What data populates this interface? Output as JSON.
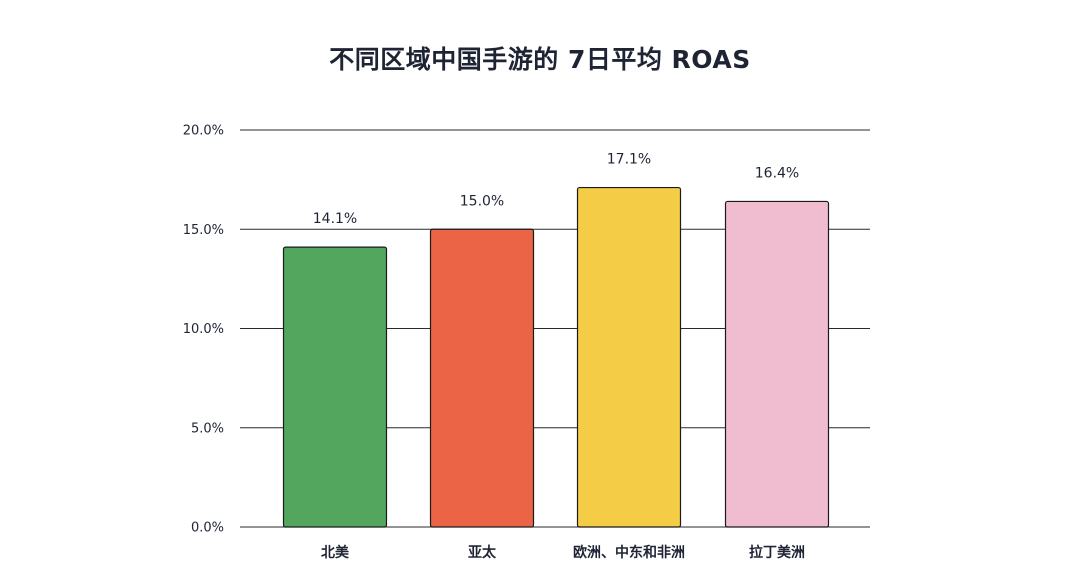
{
  "chart_data": {
    "type": "bar",
    "title": "不同区域中国手游的 7日平均 ROAS",
    "xlabel": "",
    "ylabel": "",
    "categories": [
      "北美",
      "亚太",
      "欧洲、中东和非洲",
      "拉丁美洲"
    ],
    "values": [
      14.1,
      15.0,
      17.1,
      16.4
    ],
    "data_labels": [
      "14.1%",
      "15.0%",
      "17.1%",
      "16.4%"
    ],
    "colors": [
      "#52a65e",
      "#eb6446",
      "#f5cc45",
      "#f0bccf"
    ],
    "ylim": [
      0,
      20
    ],
    "yticks": [
      0,
      5,
      10,
      15,
      20
    ],
    "ytick_labels": [
      "0.0%",
      "5.0%",
      "10.0%",
      "15.0%",
      "20.0%"
    ],
    "grid": true,
    "legend": "none"
  }
}
